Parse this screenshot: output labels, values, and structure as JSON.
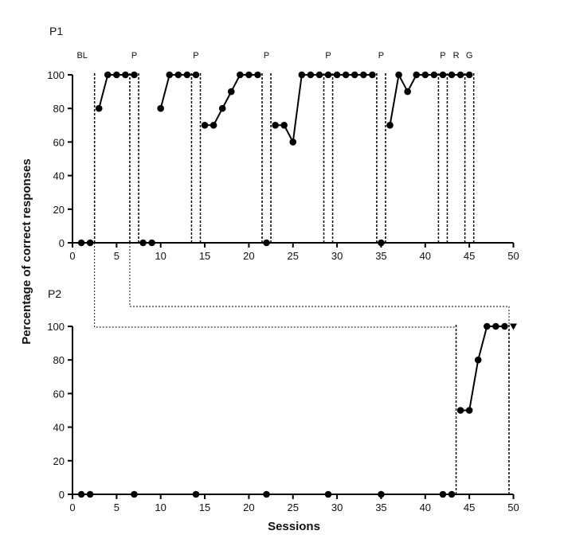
{
  "chart_data": [
    {
      "panel": "P1",
      "type": "line",
      "xlim": [
        0,
        50
      ],
      "ylim": [
        0,
        100
      ],
      "x_ticks": [
        0,
        5,
        10,
        15,
        20,
        25,
        30,
        35,
        40,
        45,
        50
      ],
      "y_ticks": [
        0,
        20,
        40,
        60,
        80,
        100
      ],
      "segments": [
        {
          "x": [
            1,
            2
          ],
          "y": [
            0,
            0
          ]
        },
        {
          "x": [
            3,
            4,
            5,
            6,
            7
          ],
          "y": [
            80,
            100,
            100,
            100,
            100
          ]
        },
        {
          "x": [
            8,
            9
          ],
          "y": [
            0,
            0
          ]
        },
        {
          "x": [
            10,
            11,
            12,
            13,
            14
          ],
          "y": [
            80,
            100,
            100,
            100,
            100
          ]
        },
        {
          "x": [
            15,
            16,
            17,
            18,
            19,
            20,
            21
          ],
          "y": [
            70,
            70,
            80,
            90,
            100,
            100,
            100
          ]
        },
        {
          "x": [
            22
          ],
          "y": [
            0
          ]
        },
        {
          "x": [
            23,
            24,
            25,
            26,
            27,
            28,
            29,
            30,
            31,
            32,
            33,
            34
          ],
          "y": [
            70,
            70,
            60,
            100,
            100,
            100,
            100,
            100,
            100,
            100,
            100,
            100
          ]
        },
        {
          "x": [
            35
          ],
          "y": [
            0
          ]
        },
        {
          "x": [
            36,
            37,
            38,
            39,
            40,
            41,
            42,
            43,
            44,
            45
          ],
          "y": [
            70,
            100,
            90,
            100,
            100,
            100,
            100,
            100,
            100,
            100
          ]
        }
      ],
      "phase_lines": [
        2.5,
        6.5,
        7.5,
        13.5,
        14.5,
        21.5,
        22.5,
        28.5,
        29.5,
        34.5,
        35.5,
        41.5,
        42.5,
        44.5,
        45.5
      ],
      "phase_labels": [
        {
          "text": "BL",
          "x": 1.1
        },
        {
          "text": "P",
          "x": 7
        },
        {
          "text": "P",
          "x": 14
        },
        {
          "text": "P",
          "x": 22
        },
        {
          "text": "P",
          "x": 29
        },
        {
          "text": "P",
          "x": 35
        },
        {
          "text": "P",
          "x": 42
        },
        {
          "text": "R",
          "x": 43.5
        },
        {
          "text": "G",
          "x": 45
        }
      ]
    },
    {
      "panel": "P2",
      "type": "line",
      "xlim": [
        0,
        50
      ],
      "ylim": [
        0,
        100
      ],
      "x_ticks": [
        0,
        5,
        10,
        15,
        20,
        25,
        30,
        35,
        40,
        45,
        50
      ],
      "y_ticks": [
        0,
        20,
        40,
        60,
        80,
        100
      ],
      "probe_points": {
        "x": [
          1,
          2,
          7,
          14,
          22,
          29,
          35,
          42,
          43
        ],
        "y": [
          0,
          0,
          0,
          0,
          0,
          0,
          0,
          0,
          0
        ]
      },
      "segments": [
        {
          "x": [
            44,
            45,
            46,
            47,
            48,
            49
          ],
          "y": [
            50,
            50,
            80,
            100,
            100,
            100
          ]
        }
      ],
      "triangle_point": {
        "x": 50,
        "y": 100
      },
      "phase_lines": [
        43.5,
        49.5
      ]
    }
  ],
  "labels": {
    "p1": "P1",
    "p2": "P2",
    "ylabel": "Percentage of correct responses",
    "xlabel": "Sessions"
  }
}
